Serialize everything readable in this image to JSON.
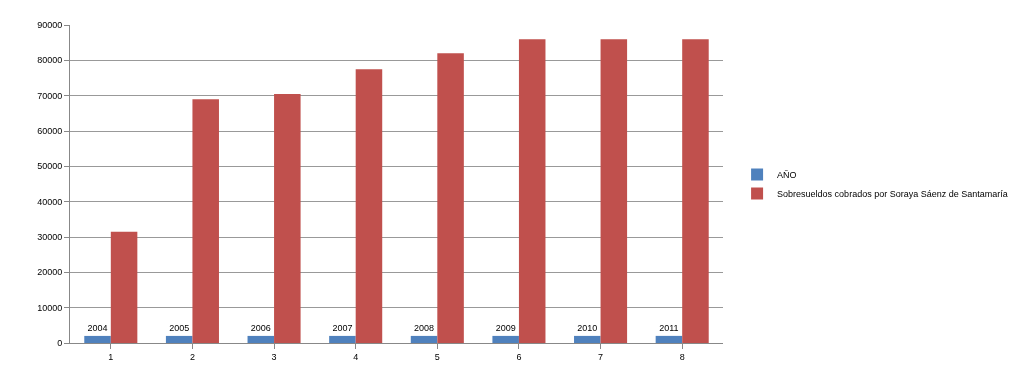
{
  "chart_data": {
    "type": "bar",
    "categories": [
      "1",
      "2",
      "3",
      "4",
      "5",
      "6",
      "7",
      "8"
    ],
    "series": [
      {
        "name": "AÑO",
        "color": "#4f81bd",
        "values": [
          2004,
          2005,
          2006,
          2007,
          2008,
          2009,
          2010,
          2011
        ],
        "value_labels": [
          "2004",
          "2005",
          "2006",
          "2007",
          "2008",
          "2009",
          "2010",
          "2011"
        ]
      },
      {
        "name": "Sobresueldos cobrados por Soraya Sáenz de Santamaría",
        "color": "#c0504d",
        "values": [
          31500,
          69000,
          70500,
          77500,
          82000,
          86000,
          86000,
          86000
        ]
      }
    ],
    "ylim": [
      0,
      90000
    ],
    "yticks": [
      0,
      10000,
      20000,
      30000,
      40000,
      50000,
      60000,
      70000,
      80000,
      90000
    ],
    "grid": "y",
    "legend": "right"
  }
}
